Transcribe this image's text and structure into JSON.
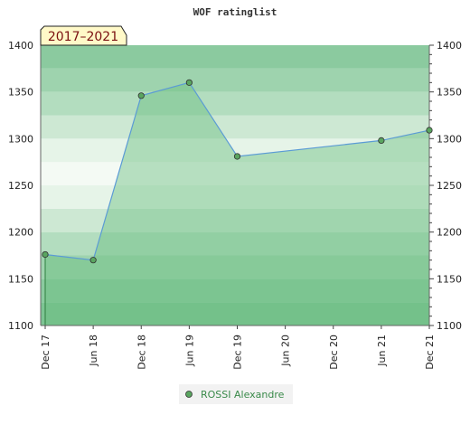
{
  "chart_data": {
    "type": "area",
    "title": "WOF ratinglist",
    "badge": "2017–2021",
    "x_ticks": [
      "Dec 17",
      "Jun 18",
      "Dec 18",
      "Jun 19",
      "Dec 19",
      "Jun 20",
      "Dec 20",
      "Jun 21",
      "Dec 21"
    ],
    "ylim": [
      1100,
      1400
    ],
    "y_ticks": [
      1100,
      1150,
      1200,
      1250,
      1300,
      1350,
      1400
    ],
    "grid": true,
    "legend_position": "bottom",
    "colors": {
      "line": "#5b9bd5",
      "fill": "#6abf80",
      "marker": "#5aa560",
      "legend_text": "#3a8a4a",
      "badge_bg": "#fff9c8",
      "bands": [
        "#7cc493",
        "#8bca9f",
        "#9ed3ae",
        "#b3ddbf",
        "#cde8d3",
        "#e6f4e8",
        "#f4faf4"
      ]
    },
    "series": [
      {
        "name": "ROSSI Alexandre",
        "points": [
          {
            "x": "Dec 17",
            "y": 1176
          },
          {
            "x": "Jun 18",
            "y": 1170
          },
          {
            "x": "Dec 18",
            "y": 1346
          },
          {
            "x": "Jun 19",
            "y": 1360
          },
          {
            "x": "Dec 19",
            "y": 1281
          },
          {
            "x": "Jun 21",
            "y": 1298
          },
          {
            "x": "Dec 21",
            "y": 1309
          }
        ]
      }
    ]
  }
}
